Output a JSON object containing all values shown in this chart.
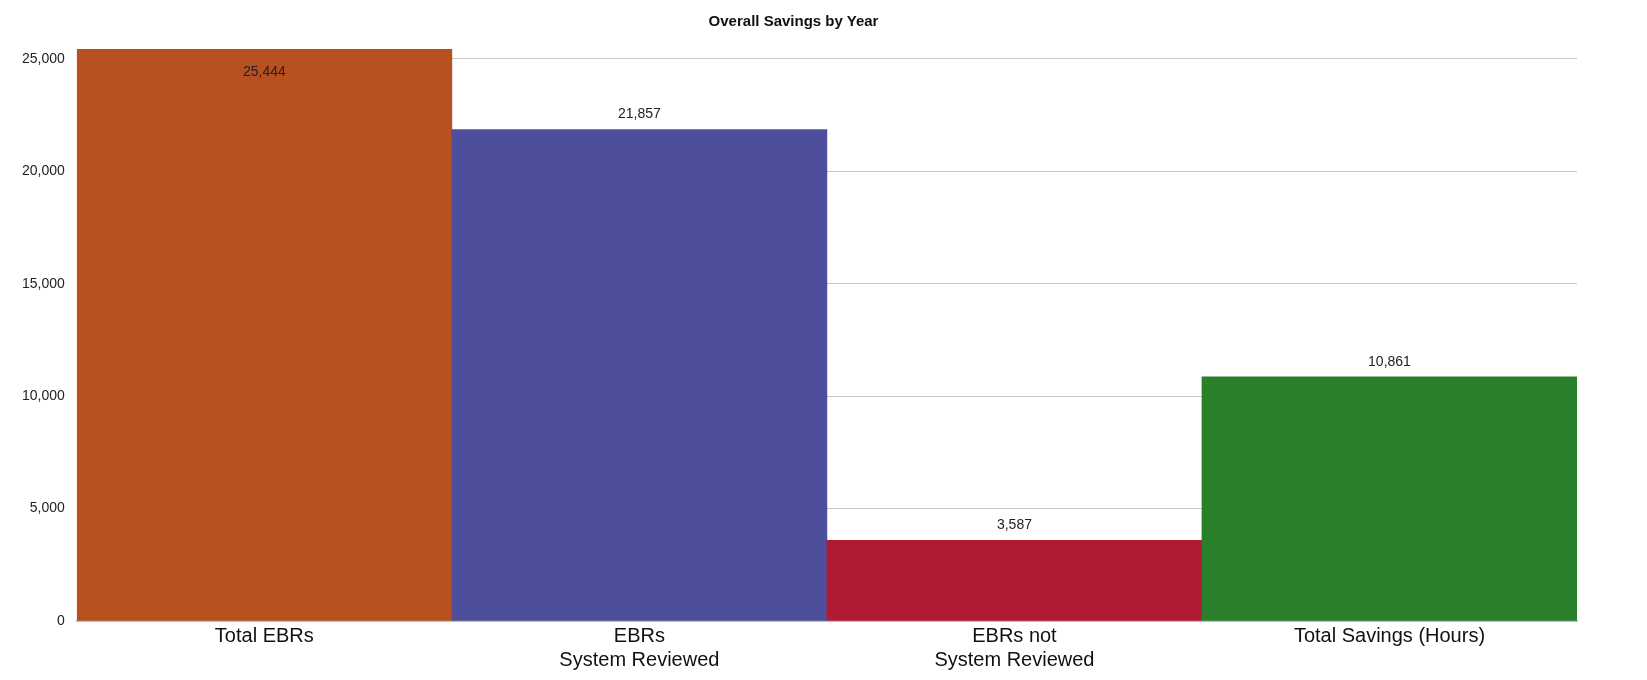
{
  "chart_data": {
    "type": "bar",
    "title": "Overall Savings by Year",
    "categories": [
      [
        "Total EBRs"
      ],
      [
        "EBRs",
        "System Reviewed"
      ],
      [
        "EBRs not",
        "System Reviewed"
      ],
      [
        "Total Savings (Hours)"
      ]
    ],
    "values": [
      25444,
      21857,
      3587,
      10861
    ],
    "value_labels": [
      "25,444",
      "21,857",
      "3,587",
      "10,861"
    ],
    "colors": [
      "#b8501f",
      "#4e4f9c",
      "#b01a32",
      "#2a7f2a"
    ],
    "ylim": [
      0,
      25444
    ],
    "yticks": [
      0,
      {
        "value": 5000,
        "label": "5,000"
      },
      {
        "value": 10000,
        "label": "10,000"
      },
      {
        "value": 15000,
        "label": "15,000"
      },
      {
        "value": 20000,
        "label": "20,000"
      },
      {
        "value": 25000,
        "label": "25,000"
      }
    ],
    "grid": "y"
  }
}
